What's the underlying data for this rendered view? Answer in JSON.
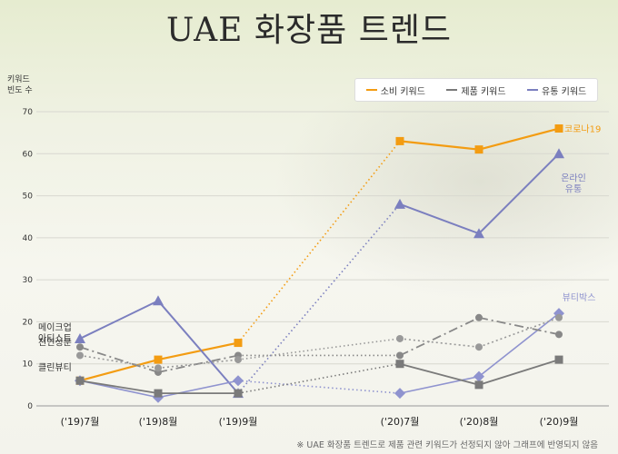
{
  "title": "UAE 화장품 트렌드",
  "ylabel_line1": "키워드",
  "ylabel_line2": "빈도 수",
  "legend": [
    {
      "label": "소비 키워드",
      "color": "#f39c12"
    },
    {
      "label": "제품 키워드",
      "color": "#7a7a7a"
    },
    {
      "label": "유통 키워드",
      "color": "#7b7fbf"
    }
  ],
  "footnote": "※ UAE 화장품 트렌드로 제품 관련 키워드가 선정되지 않아 그래프에 반영되지 않음",
  "chart_data": {
    "type": "line",
    "categories": [
      "('19)7월",
      "('19)8월",
      "('19)9월",
      "('20)7월",
      "('20)8월",
      "('20)9월"
    ],
    "ylim": [
      0,
      70
    ],
    "yticks": [
      0,
      10,
      20,
      30,
      40,
      50,
      60,
      70
    ],
    "gap_after_index": 2,
    "series": [
      {
        "name": "코로나19",
        "group": "소비 키워드",
        "color": "#f39c12",
        "marker": "square",
        "style": "solid",
        "width": 2.2,
        "values": [
          6,
          11,
          15,
          63,
          61,
          66
        ]
      },
      {
        "name": "온라인 유통",
        "group": "유통 키워드",
        "color": "#7b7fbf",
        "marker": "triangle",
        "style": "solid",
        "width": 2,
        "values": [
          16,
          25,
          3,
          48,
          41,
          60
        ]
      },
      {
        "name": "뷰티박스",
        "group": "유통 키워드",
        "color": "#8f93cf",
        "marker": "diamond",
        "style": "solid",
        "width": 1.6,
        "values": [
          6,
          2,
          6,
          3,
          7,
          22
        ]
      },
      {
        "name": "메이크업 아티스트",
        "group": "제품 키워드",
        "color": "#888888",
        "marker": "circle",
        "style": "dashdot",
        "width": 1.8,
        "values": [
          14,
          8,
          12,
          12,
          21,
          17
        ]
      },
      {
        "name": "천연성분",
        "group": "제품 키워드",
        "color": "#999999",
        "marker": "circle",
        "style": "dotted",
        "width": 1.6,
        "values": [
          12,
          9,
          11,
          16,
          14,
          21
        ]
      },
      {
        "name": "클린뷰티",
        "group": "제품 키워드",
        "color": "#7a7a7a",
        "marker": "square",
        "style": "solid",
        "width": 1.8,
        "values": [
          6,
          3,
          3,
          10,
          5,
          11
        ]
      }
    ],
    "labels": [
      {
        "text": "코로나19",
        "series": 0,
        "side": "right"
      },
      {
        "text1": "온라인",
        "text2": "유통",
        "series": 1,
        "side": "below"
      },
      {
        "text": "뷰티박스",
        "series": 2,
        "side": "above"
      },
      {
        "text1": "메이크업",
        "text2": "아티스트",
        "series": 3,
        "side": "left"
      },
      {
        "text": "천연성분",
        "series": 4,
        "side": "left"
      },
      {
        "text": "클린뷰티",
        "series": 5,
        "side": "left"
      }
    ]
  }
}
